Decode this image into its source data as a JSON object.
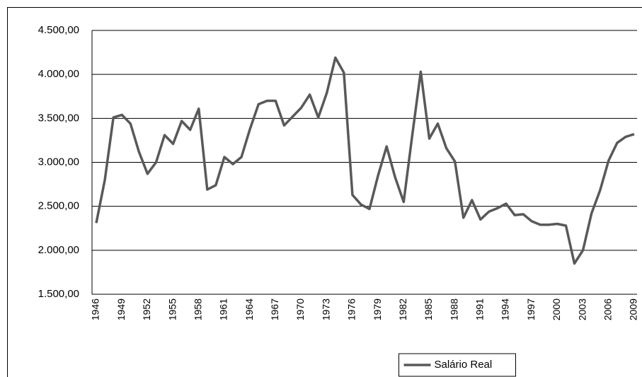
{
  "chart_data": {
    "type": "line",
    "categories": [
      "1946",
      null,
      null,
      "1949",
      null,
      null,
      "1952",
      null,
      null,
      "1955",
      null,
      null,
      "1958",
      null,
      null,
      "1961",
      null,
      null,
      "1964",
      null,
      null,
      "1967",
      null,
      null,
      "1970",
      null,
      null,
      "1973",
      null,
      null,
      "1976",
      null,
      null,
      "1979",
      null,
      null,
      "1982",
      null,
      null,
      "1985",
      null,
      null,
      "1988",
      null,
      null,
      "1991",
      null,
      null,
      "1994",
      null,
      null,
      "1997",
      null,
      null,
      "2000",
      null,
      null,
      "2003",
      null,
      null,
      "2006",
      null,
      null,
      "2009"
    ],
    "series": [
      {
        "name": "Salário Real",
        "color": "#595959",
        "values": [
          2310,
          2800,
          3510,
          3540,
          3440,
          3120,
          2870,
          3000,
          3310,
          3210,
          3470,
          3370,
          3610,
          2690,
          2740,
          3060,
          2980,
          3060,
          3380,
          3660,
          3700,
          3700,
          3420,
          3520,
          3620,
          3770,
          3510,
          3790,
          4190,
          4020,
          2630,
          2520,
          2470,
          2850,
          3180,
          2830,
          2550,
          3300,
          4030,
          3270,
          3440,
          3160,
          3010,
          2370,
          2570,
          2350,
          2440,
          2480,
          2530,
          2400,
          2410,
          2330,
          2290,
          2290,
          2300,
          2280,
          1850,
          2000,
          2420,
          2680,
          3020,
          3220,
          3290,
          3320
        ]
      }
    ],
    "ylim": [
      1500,
      4500
    ],
    "yticks": [
      {
        "value": 1500,
        "label": "1.500,00"
      },
      {
        "value": 2000,
        "label": "2.000,00"
      },
      {
        "value": 2500,
        "label": "2.500,00"
      },
      {
        "value": 3000,
        "label": "3.000,00"
      },
      {
        "value": 3500,
        "label": "3.500,00"
      },
      {
        "value": 4000,
        "label": "4.000,00"
      },
      {
        "value": 4500,
        "label": "4.500,00"
      }
    ],
    "grid": true,
    "legend": "bottom"
  }
}
